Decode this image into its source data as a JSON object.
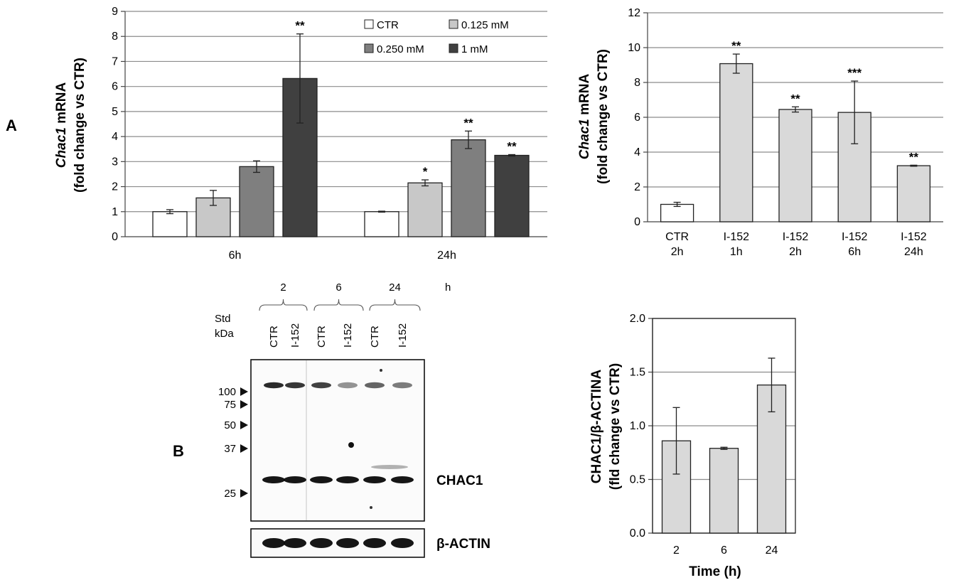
{
  "panels": {
    "a": "A",
    "b": "B"
  },
  "chart_data": [
    {
      "id": "a-left",
      "type": "bar",
      "ylabel_italic": "Chac1",
      "ylabel_rest": " mRNA",
      "ylabel_line2": "(fold change vs CTR)",
      "ylim": [
        0,
        9
      ],
      "yticks": [
        "0",
        "1",
        "2",
        "3",
        "4",
        "5",
        "6",
        "7",
        "8",
        "9"
      ],
      "grid": true,
      "categories": [
        "6h",
        "24h"
      ],
      "series": [
        {
          "name": "CTR",
          "color": "#ffffff",
          "values": [
            1.0,
            1.0
          ],
          "errors": [
            0.08,
            0.02
          ],
          "stars": [
            "",
            ""
          ]
        },
        {
          "name": "0.125 mM",
          "color": "#c8c8c8",
          "values": [
            1.55,
            2.15
          ],
          "errors": [
            0.3,
            0.12
          ],
          "stars": [
            "",
            "*"
          ]
        },
        {
          "name": "0.250 mM",
          "color": "#7f7f7f",
          "values": [
            2.8,
            3.87
          ],
          "errors": [
            0.23,
            0.35
          ],
          "stars": [
            "",
            "**"
          ]
        },
        {
          "name": "1 mM",
          "color": "#404040",
          "values": [
            6.32,
            3.25
          ],
          "errors": [
            1.78,
            0.03
          ],
          "stars": [
            "**",
            "**"
          ]
        }
      ]
    },
    {
      "id": "a-right",
      "type": "bar",
      "ylabel_italic": "Chac1",
      "ylabel_rest": " mRNA",
      "ylabel_line2": "(fold change vs CTR)",
      "ylim": [
        0,
        12
      ],
      "yticks": [
        "0",
        "2",
        "4",
        "6",
        "8",
        "10",
        "12"
      ],
      "grid": true,
      "categories": [
        [
          "CTR",
          "2h"
        ],
        [
          "I-152",
          "1h"
        ],
        [
          "I-152",
          "2h"
        ],
        [
          "I-152",
          "6h"
        ],
        [
          "I-152",
          "24h"
        ]
      ],
      "values": [
        1.0,
        9.08,
        6.45,
        6.28,
        3.22
      ],
      "errors": [
        0.12,
        0.55,
        0.15,
        1.8,
        0.03
      ],
      "colors": [
        "#ffffff",
        "#d9d9d9",
        "#d9d9d9",
        "#d9d9d9",
        "#d9d9d9"
      ],
      "stars": [
        "",
        "**",
        "**",
        "***",
        "**"
      ]
    },
    {
      "id": "b-right",
      "type": "bar",
      "ylabel_line1": "CHAC1/β-ACTINA",
      "ylabel_line2": "(fld change vs CTR)",
      "xlabel": "Time (h)",
      "ylim": [
        0,
        2
      ],
      "yticks": [
        "0.0",
        "0.5",
        "1.0",
        "1.5",
        "2.0"
      ],
      "grid": true,
      "categories": [
        "2",
        "6",
        "24"
      ],
      "values": [
        0.86,
        0.79,
        1.38
      ],
      "errors": [
        0.31,
        0.01,
        0.25
      ],
      "colors": [
        "#d9d9d9",
        "#d9d9d9",
        "#d9d9d9"
      ]
    }
  ],
  "western_blot": {
    "time_groups": [
      "2",
      "6",
      "24"
    ],
    "time_unit": "h",
    "std_label_1": "Std",
    "std_label_2": "kDa",
    "lanes": [
      "CTR",
      "I-152",
      "CTR",
      "I-152",
      "CTR",
      "I-152"
    ],
    "markers": [
      "100",
      "75",
      "50",
      "37",
      "25"
    ],
    "marker_values": [
      100,
      75,
      50,
      37,
      25
    ],
    "chac1_label": "CHAC1",
    "actin_label": "β-ACTIN"
  }
}
